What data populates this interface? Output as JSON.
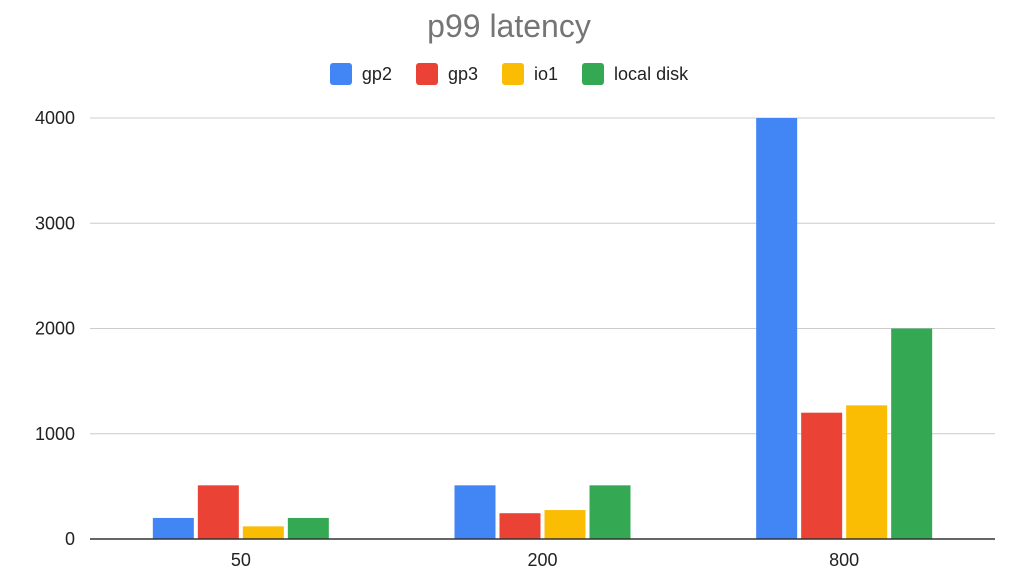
{
  "chart_data": {
    "type": "bar",
    "title": "p99 latency",
    "xlabel": "",
    "ylabel": "",
    "categories": [
      "50",
      "200",
      "800"
    ],
    "series": [
      {
        "name": "gp2",
        "color": "#4285F4",
        "values": [
          200,
          510,
          4000
        ]
      },
      {
        "name": "gp3",
        "color": "#EA4335",
        "values": [
          510,
          245,
          1200
        ]
      },
      {
        "name": "io1",
        "color": "#FBBC04",
        "values": [
          120,
          275,
          1270
        ]
      },
      {
        "name": "local disk",
        "color": "#34A853",
        "values": [
          200,
          510,
          2000
        ]
      }
    ],
    "ylim": [
      0,
      4000
    ],
    "yticks": [
      0,
      1000,
      2000,
      3000,
      4000
    ],
    "grid": true,
    "legend_position": "top-center"
  }
}
